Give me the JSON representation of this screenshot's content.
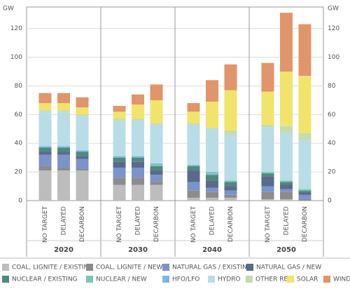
{
  "chart_data": {
    "type": "stacked-bar",
    "y_label": "GW",
    "groups": [
      "2020",
      "2030",
      "2040",
      "2050"
    ],
    "categories": [
      "NO TARGET",
      "DELAYED",
      "DECARBON",
      "NO TARGET",
      "DELAYED",
      "DECARBON",
      "NO TARGET",
      "DELAYED",
      "DECARBON",
      "NO TARGET",
      "DELAYED",
      "DECARBON"
    ],
    "ylim": [
      0,
      135
    ],
    "yticks": [
      0,
      20,
      40,
      60,
      80,
      100,
      120
    ],
    "grid": true,
    "series": [
      {
        "name": "COAL, LIGNITE / EXISTING",
        "color": "#bdbdbd",
        "values": [
          21,
          21,
          21,
          11,
          11,
          11,
          2,
          2,
          2,
          1,
          1,
          0
        ]
      },
      {
        "name": "COAL, LIGNITE / NEW",
        "color": "#8c8c8c",
        "values": [
          3,
          2,
          1,
          5,
          5,
          2,
          5,
          4,
          2,
          5,
          5,
          1
        ]
      },
      {
        "name": "NATURAL GAS / EXISTING",
        "color": "#7b93c9",
        "values": [
          8,
          9,
          7,
          7,
          7,
          5,
          6,
          3,
          3,
          4,
          2,
          3
        ]
      },
      {
        "name": "NATURAL GAS / NEW",
        "color": "#5a6a8c",
        "values": [
          2,
          2,
          2,
          4,
          4,
          3,
          8,
          5,
          3,
          7,
          3,
          2
        ]
      },
      {
        "name": "NUCLEAR / EXISTING",
        "color": "#4f8a7e",
        "values": [
          3,
          3,
          3,
          3,
          3,
          3,
          3,
          4,
          3,
          2,
          2,
          1
        ]
      },
      {
        "name": "NUCLEAR / NEW",
        "color": "#7cc4b4",
        "values": [
          0,
          0,
          0,
          0,
          0,
          1,
          0,
          1,
          1,
          1,
          1,
          1
        ]
      },
      {
        "name": "HFO/LFO",
        "color": "#7fb6e0",
        "values": [
          1,
          1,
          1,
          1,
          1,
          1,
          1,
          1,
          0,
          0,
          0,
          0
        ]
      },
      {
        "name": "HYDRO",
        "color": "#b9dde6",
        "values": [
          24,
          24,
          24,
          25,
          25,
          27,
          28,
          30,
          32,
          31,
          33,
          34
        ]
      },
      {
        "name": "OTHER RES",
        "color": "#c6dbb0",
        "values": [
          1,
          1,
          1,
          1,
          1,
          1,
          1,
          1,
          3,
          2,
          5,
          5
        ]
      },
      {
        "name": "SOLAR",
        "color": "#f2e36b",
        "values": [
          5,
          5,
          5,
          5,
          10,
          16,
          8,
          18,
          28,
          23,
          38,
          40
        ]
      },
      {
        "name": "WIND",
        "color": "#e0956a",
        "values": [
          7,
          7,
          7,
          4,
          7,
          11,
          6,
          15,
          18,
          20,
          41,
          36
        ]
      }
    ]
  }
}
